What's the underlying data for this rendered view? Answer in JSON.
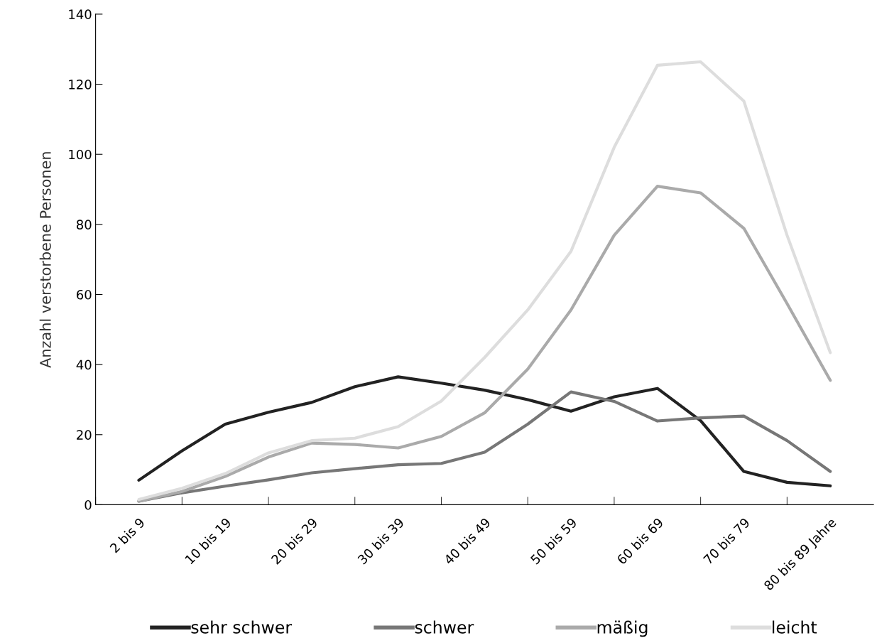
{
  "chart_data": {
    "type": "line",
    "ylabel": "Anzahl verstorbene Personen",
    "categories": [
      "2 bis 9",
      null,
      "10 bis 19",
      null,
      "20 bis 29",
      null,
      "30 bis 39",
      null,
      "40 bis 49",
      null,
      "50 bis 59",
      null,
      "60 bis 69",
      null,
      "70 bis 79",
      null,
      "80 bis 89 Jahre"
    ],
    "series": [
      {
        "name": "sehr schwer",
        "color": "#222222",
        "values": [
          7,
          15.4,
          23,
          26.4,
          29.2,
          33.7,
          36.5,
          34.7,
          32.7,
          30,
          26.7,
          30.8,
          33.2,
          24,
          9.5,
          6.4,
          5.4
        ]
      },
      {
        "name": "schwer",
        "color": "#777777",
        "values": [
          1,
          3.4,
          5.3,
          7.1,
          9.1,
          10.3,
          11.4,
          11.8,
          15,
          23,
          32.2,
          29.5,
          23.9,
          24.8,
          25.3,
          18.3,
          9.5
        ]
      },
      {
        "name": "mäßig",
        "color": "#aaaaaa",
        "values": [
          1,
          3.8,
          8.1,
          13.6,
          17.6,
          17.2,
          16.2,
          19.5,
          26.2,
          38.7,
          55.6,
          76.9,
          90.9,
          89,
          78.9,
          57.4,
          35.5
        ]
      },
      {
        "name": "leicht",
        "color": "#dddddd",
        "values": [
          1.5,
          4.7,
          8.9,
          14.8,
          18.3,
          19,
          22.3,
          29.6,
          42,
          55.6,
          72.3,
          102,
          125.4,
          126.4,
          115.2,
          76.9,
          43.4
        ]
      }
    ],
    "ylim": [
      0,
      140
    ],
    "yticks": [
      0,
      20,
      40,
      60,
      80,
      100,
      120,
      140
    ],
    "grid": false,
    "legend": "bottom",
    "marker": "none",
    "line_style": "solid"
  }
}
